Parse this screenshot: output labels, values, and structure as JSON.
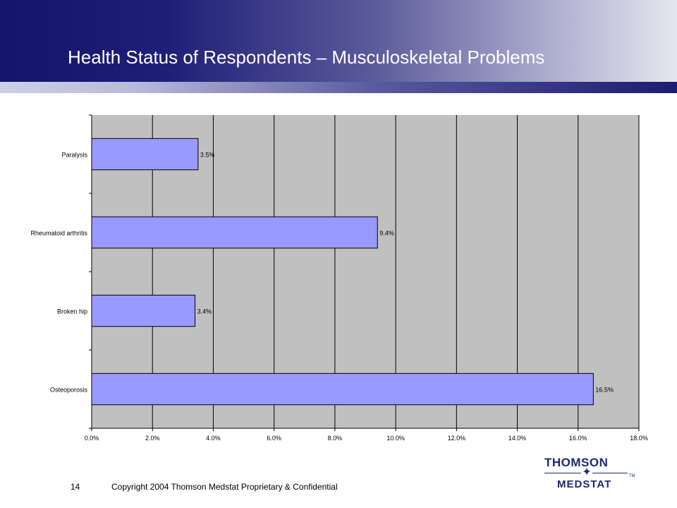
{
  "slide": {
    "title": "Health Status of Respondents – Musculoskeletal Problems",
    "page_number": "14",
    "copyright": "Copyright 2004 Thomson Medstat  Proprietary & Confidential"
  },
  "logo": {
    "top_text": "THOMSON",
    "bottom_text": "MEDSTAT",
    "trademark": "TM",
    "icon": "star-icon"
  },
  "colors": {
    "bar_fill": "#9999ff",
    "plot_background": "#c0c0c0",
    "header_dark": "#14146a"
  },
  "chart_data": {
    "type": "bar",
    "orientation": "horizontal",
    "categories": [
      "Paralysis",
      "Rheumatoid arthritis",
      "Broken hip",
      "Osteoporosis"
    ],
    "values": [
      3.5,
      9.4,
      3.4,
      16.5
    ],
    "data_labels": [
      "3.5%",
      "9.4%",
      "3.4%",
      "16.5%"
    ],
    "xlim": [
      0,
      18
    ],
    "xticks": [
      0,
      2,
      4,
      6,
      8,
      10,
      12,
      14,
      16,
      18
    ],
    "xtick_labels": [
      "0.0%",
      "2.0%",
      "4.0%",
      "6.0%",
      "8.0%",
      "10.0%",
      "12.0%",
      "14.0%",
      "16.0%",
      "18.0%"
    ],
    "grid": "vertical",
    "legend": "none"
  }
}
